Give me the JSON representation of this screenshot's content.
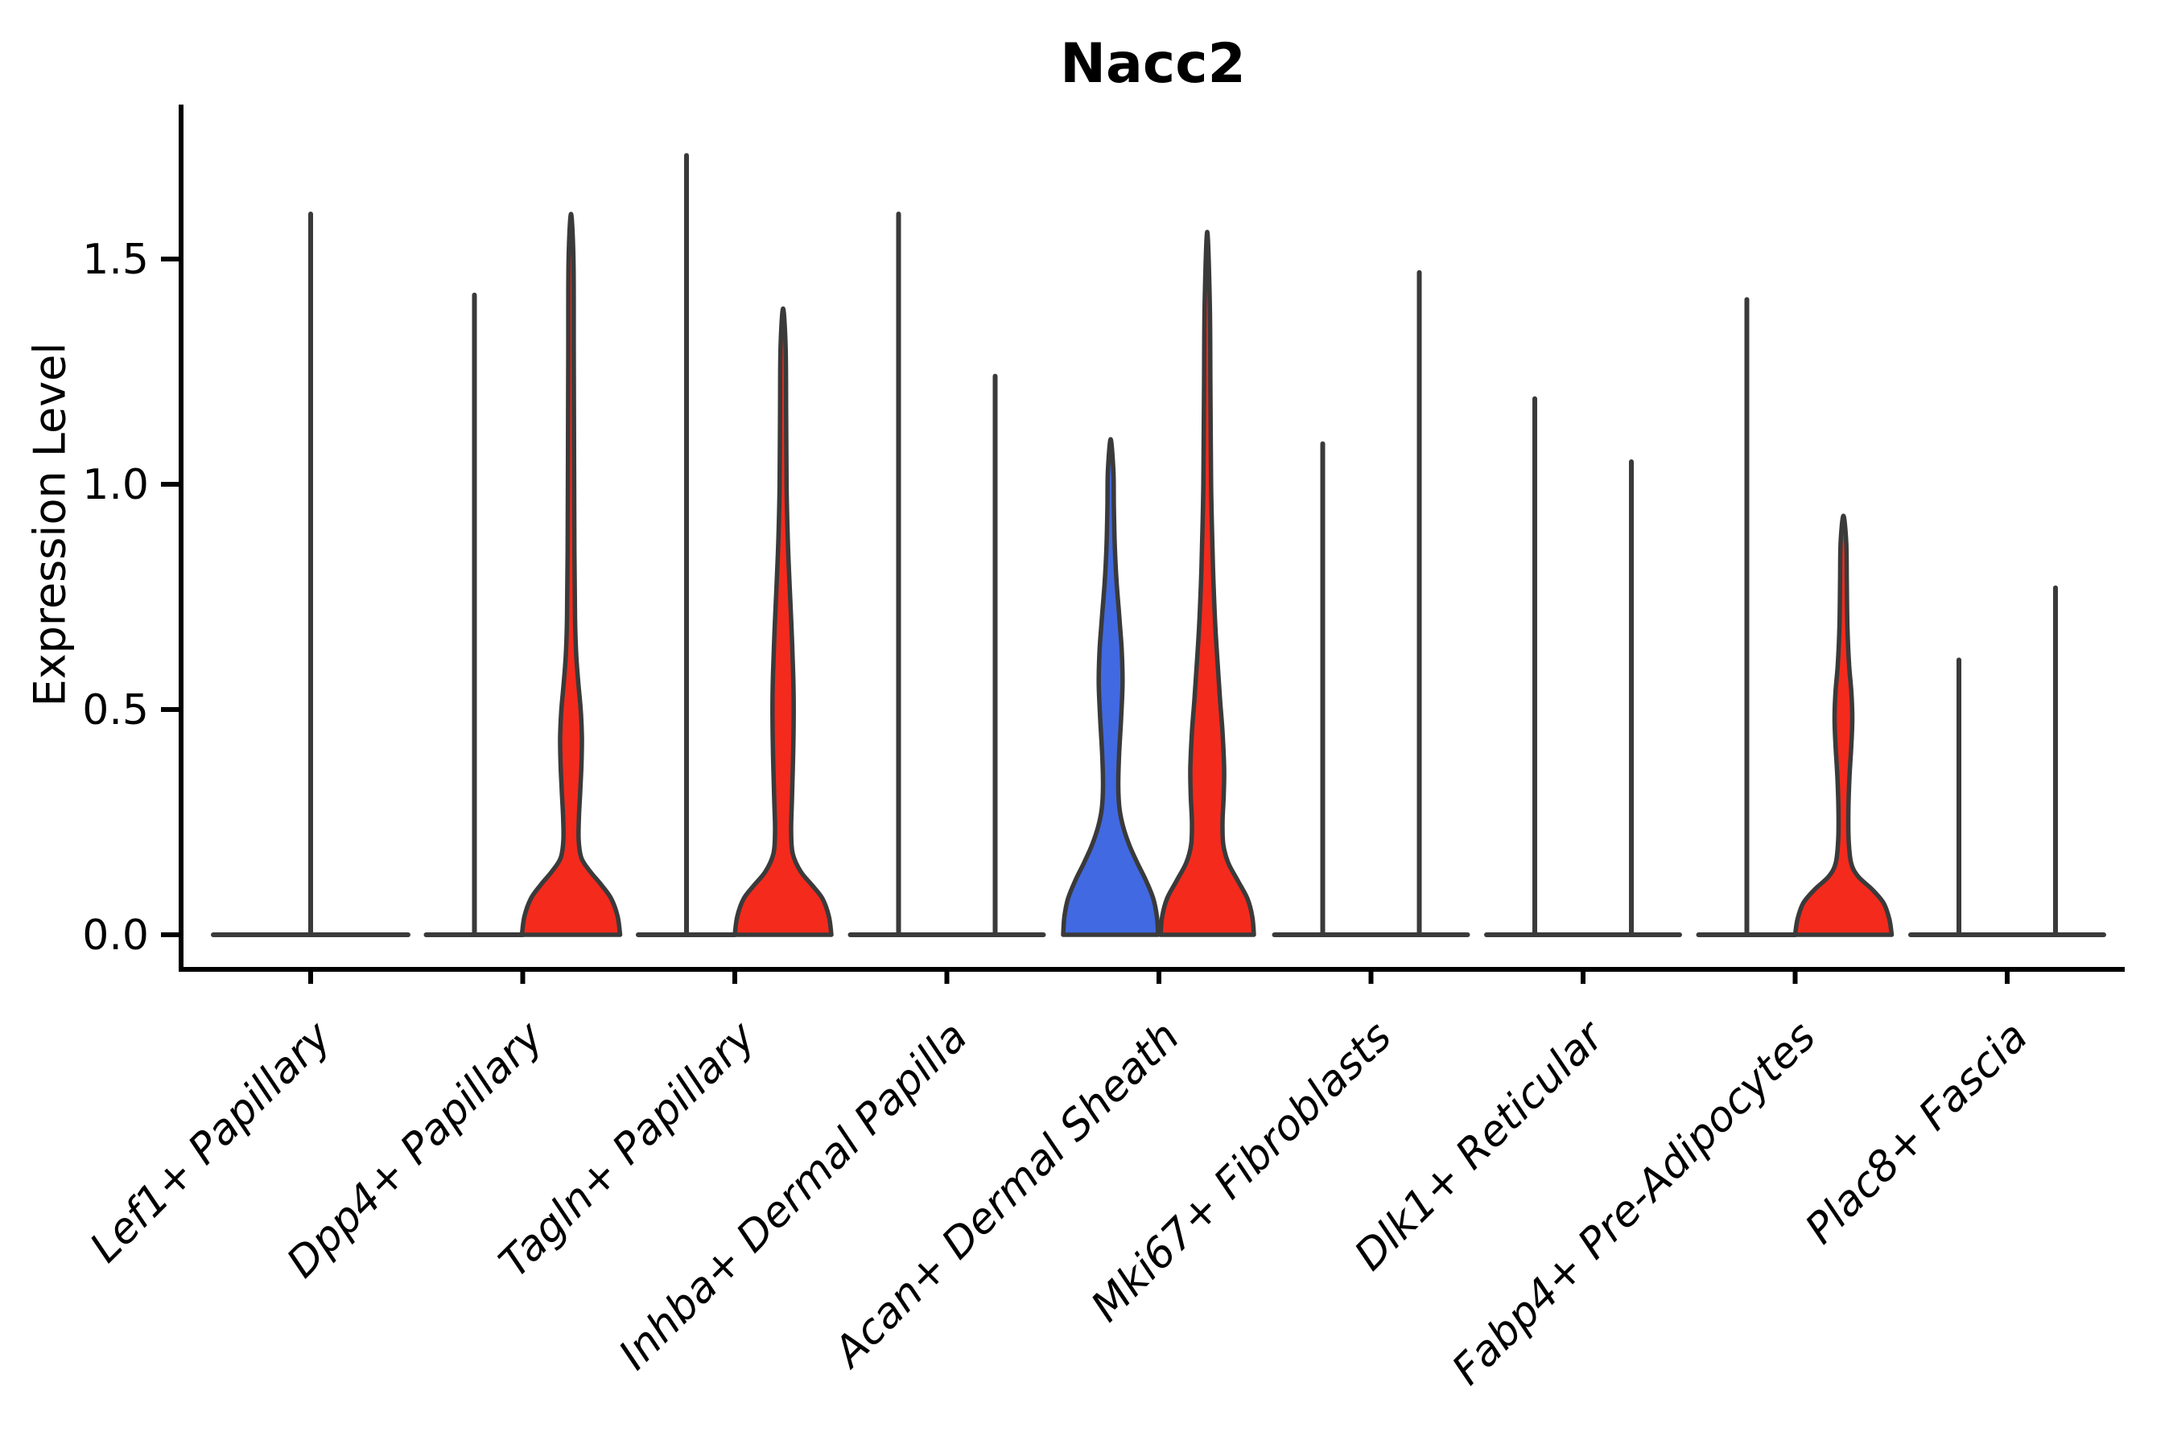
{
  "page": {
    "background": "#ffffff"
  },
  "header": {
    "title": "Nacc2"
  },
  "chart_data": {
    "type": "violin",
    "title": "Nacc2",
    "xlabel": "",
    "ylabel": "Expression Level",
    "ylim": [
      -0.08,
      1.84
    ],
    "grid": false,
    "legend_position": "none",
    "yticks": [
      {
        "value": 0.0,
        "label": "0.0"
      },
      {
        "value": 0.5,
        "label": "0.5"
      },
      {
        "value": 1.0,
        "label": "1.0"
      },
      {
        "value": 1.5,
        "label": "1.5"
      }
    ],
    "categories": [
      "Lef1+ Papillary",
      "Dpp4+ Papillary",
      "Tagln+ Papillary",
      "Inhba+ Dermal Papilla",
      "Acan+ Dermal Sheath",
      "Mki67+ Fibroblasts",
      "Dlk1+ Reticular",
      "Fabp4+ Pre-Adipocytes",
      "Plac8+ Fascia"
    ],
    "group_colors": {
      "left_group": "#4169e1",
      "right_group": "#f42a1d"
    },
    "outline_color": "#3a3a3a",
    "axis_color": "#000000",
    "violins": [
      {
        "category": "Lef1+ Papillary",
        "items": [
          {
            "position": "center",
            "filled": false,
            "max_expression": 1.6
          }
        ]
      },
      {
        "category": "Dpp4+ Papillary",
        "items": [
          {
            "position": "left",
            "filled": false,
            "max_expression": 1.42
          },
          {
            "position": "right",
            "filled": true,
            "max_expression": 1.6,
            "color": "#f42a1d",
            "density_profile": [
              [
                0,
                61
              ],
              [
                0.04,
                58
              ],
              [
                0.08,
                50
              ],
              [
                0.11,
                38
              ],
              [
                0.14,
                24
              ],
              [
                0.17,
                13
              ],
              [
                0.21,
                9.5
              ],
              [
                0.26,
                9.8
              ],
              [
                0.32,
                11.5
              ],
              [
                0.38,
                13
              ],
              [
                0.44,
                13.5
              ],
              [
                0.5,
                12
              ],
              [
                0.56,
                9
              ],
              [
                0.62,
                6.5
              ],
              [
                0.7,
                5
              ],
              [
                0.85,
                4.2
              ],
              [
                1.05,
                3.8
              ],
              [
                1.3,
                3.4
              ],
              [
                1.5,
                3
              ],
              [
                1.6,
                0
              ]
            ]
          }
        ]
      },
      {
        "category": "Tagln+ Papillary",
        "items": [
          {
            "position": "left",
            "filled": false,
            "max_expression": 1.73
          },
          {
            "position": "right",
            "filled": true,
            "max_expression": 1.39,
            "color": "#f42a1d",
            "density_profile": [
              [
                0,
                60
              ],
              [
                0.04,
                57
              ],
              [
                0.08,
                49
              ],
              [
                0.11,
                36
              ],
              [
                0.14,
                22
              ],
              [
                0.18,
                12
              ],
              [
                0.23,
                10
              ],
              [
                0.3,
                11
              ],
              [
                0.4,
                12.5
              ],
              [
                0.5,
                13.2
              ],
              [
                0.58,
                12.5
              ],
              [
                0.68,
                10.5
              ],
              [
                0.78,
                8
              ],
              [
                0.88,
                5.8
              ],
              [
                1.0,
                4.3
              ],
              [
                1.15,
                3.8
              ],
              [
                1.3,
                3.2
              ],
              [
                1.39,
                0
              ]
            ]
          }
        ]
      },
      {
        "category": "Inhba+ Dermal Papilla",
        "items": [
          {
            "position": "left",
            "filled": false,
            "max_expression": 1.6
          },
          {
            "position": "right",
            "filled": false,
            "max_expression": 1.24
          }
        ]
      },
      {
        "category": "Acan+ Dermal Sheath",
        "items": [
          {
            "position": "left",
            "filled": true,
            "max_expression": 1.1,
            "color": "#4169e1",
            "density_profile": [
              [
                0,
                59
              ],
              [
                0.04,
                57.5
              ],
              [
                0.08,
                53
              ],
              [
                0.12,
                44
              ],
              [
                0.16,
                33
              ],
              [
                0.2,
                23
              ],
              [
                0.24,
                15.5
              ],
              [
                0.28,
                11
              ],
              [
                0.33,
                9.5
              ],
              [
                0.4,
                10.5
              ],
              [
                0.48,
                13
              ],
              [
                0.56,
                14.8
              ],
              [
                0.63,
                13.8
              ],
              [
                0.7,
                11
              ],
              [
                0.78,
                7.5
              ],
              [
                0.86,
                5.2
              ],
              [
                0.95,
                4
              ],
              [
                1.03,
                3.4
              ],
              [
                1.1,
                0
              ]
            ]
          },
          {
            "position": "right",
            "filled": true,
            "max_expression": 1.56,
            "color": "#f42a1d",
            "density_profile": [
              [
                0,
                58
              ],
              [
                0.04,
                56
              ],
              [
                0.08,
                50
              ],
              [
                0.12,
                38
              ],
              [
                0.16,
                26
              ],
              [
                0.2,
                20
              ],
              [
                0.25,
                19
              ],
              [
                0.31,
                20.5
              ],
              [
                0.37,
                21
              ],
              [
                0.45,
                19
              ],
              [
                0.52,
                16
              ],
              [
                0.6,
                13
              ],
              [
                0.68,
                10.2
              ],
              [
                0.78,
                7.8
              ],
              [
                0.88,
                6.2
              ],
              [
                1.0,
                4.8
              ],
              [
                1.2,
                4
              ],
              [
                1.4,
                3.2
              ],
              [
                1.56,
                0
              ]
            ]
          }
        ]
      },
      {
        "category": "Mki67+ Fibroblasts",
        "items": [
          {
            "position": "left",
            "filled": false,
            "max_expression": 1.09
          },
          {
            "position": "right",
            "filled": false,
            "max_expression": 1.47
          }
        ]
      },
      {
        "category": "Dlk1+ Reticular",
        "items": [
          {
            "position": "left",
            "filled": false,
            "max_expression": 1.19
          },
          {
            "position": "right",
            "filled": false,
            "max_expression": 1.05
          }
        ]
      },
      {
        "category": "Fabp4+ Pre-Adipocytes",
        "items": [
          {
            "position": "left",
            "filled": false,
            "max_expression": 1.41
          },
          {
            "position": "right",
            "filled": true,
            "max_expression": 0.93,
            "color": "#f42a1d",
            "density_profile": [
              [
                0,
                60
              ],
              [
                0.035,
                57
              ],
              [
                0.07,
                50
              ],
              [
                0.1,
                36
              ],
              [
                0.13,
                18
              ],
              [
                0.16,
                9.5
              ],
              [
                0.21,
                6.5
              ],
              [
                0.28,
                6.2
              ],
              [
                0.35,
                7.5
              ],
              [
                0.42,
                9.8
              ],
              [
                0.48,
                11
              ],
              [
                0.54,
                9.8
              ],
              [
                0.6,
                7
              ],
              [
                0.68,
                5
              ],
              [
                0.78,
                4.2
              ],
              [
                0.87,
                3.5
              ],
              [
                0.93,
                0
              ]
            ]
          }
        ]
      },
      {
        "category": "Plac8+ Fascia",
        "items": [
          {
            "position": "left",
            "filled": false,
            "max_expression": 0.61
          },
          {
            "position": "right",
            "filled": false,
            "max_expression": 0.77
          }
        ]
      }
    ]
  }
}
